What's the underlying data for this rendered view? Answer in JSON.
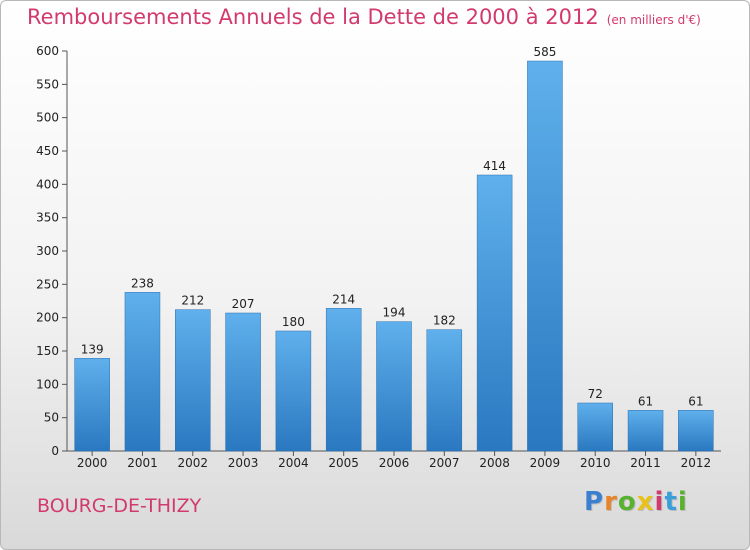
{
  "header": {
    "title": "Remboursements Annuels de la Dette de 2000 à 2012",
    "subtitle": "(en milliers d'€)"
  },
  "footer": {
    "city": "BOURG-DE-THIZY",
    "logo_letters": [
      "P",
      "r",
      "o",
      "x",
      "i",
      "t",
      "i"
    ],
    "logo_colors": [
      "#3a7fd0",
      "#e8842a",
      "#59b22f",
      "#e8c21a",
      "#d23a6e",
      "#3a9fd8",
      "#59b22f"
    ]
  },
  "chart_data": {
    "type": "bar",
    "title": "Remboursements Annuels de la Dette de 2000 à 2012",
    "subtitle": "(en milliers d'€)",
    "xlabel": "",
    "ylabel": "",
    "categories": [
      "2000",
      "2001",
      "2002",
      "2003",
      "2004",
      "2005",
      "2006",
      "2007",
      "2008",
      "2009",
      "2010",
      "2011",
      "2012"
    ],
    "values": [
      139,
      238,
      212,
      207,
      180,
      214,
      194,
      182,
      414,
      585,
      72,
      61,
      61
    ],
    "ylim": [
      0,
      600
    ],
    "yticks": [
      0,
      50,
      100,
      150,
      200,
      250,
      300,
      350,
      400,
      450,
      500,
      550,
      600
    ],
    "grid": false,
    "legend": "none",
    "bar_color": "#3f93d8",
    "bar_color_light": "#5fb0ec",
    "bar_color_dark": "#2a78c0"
  }
}
